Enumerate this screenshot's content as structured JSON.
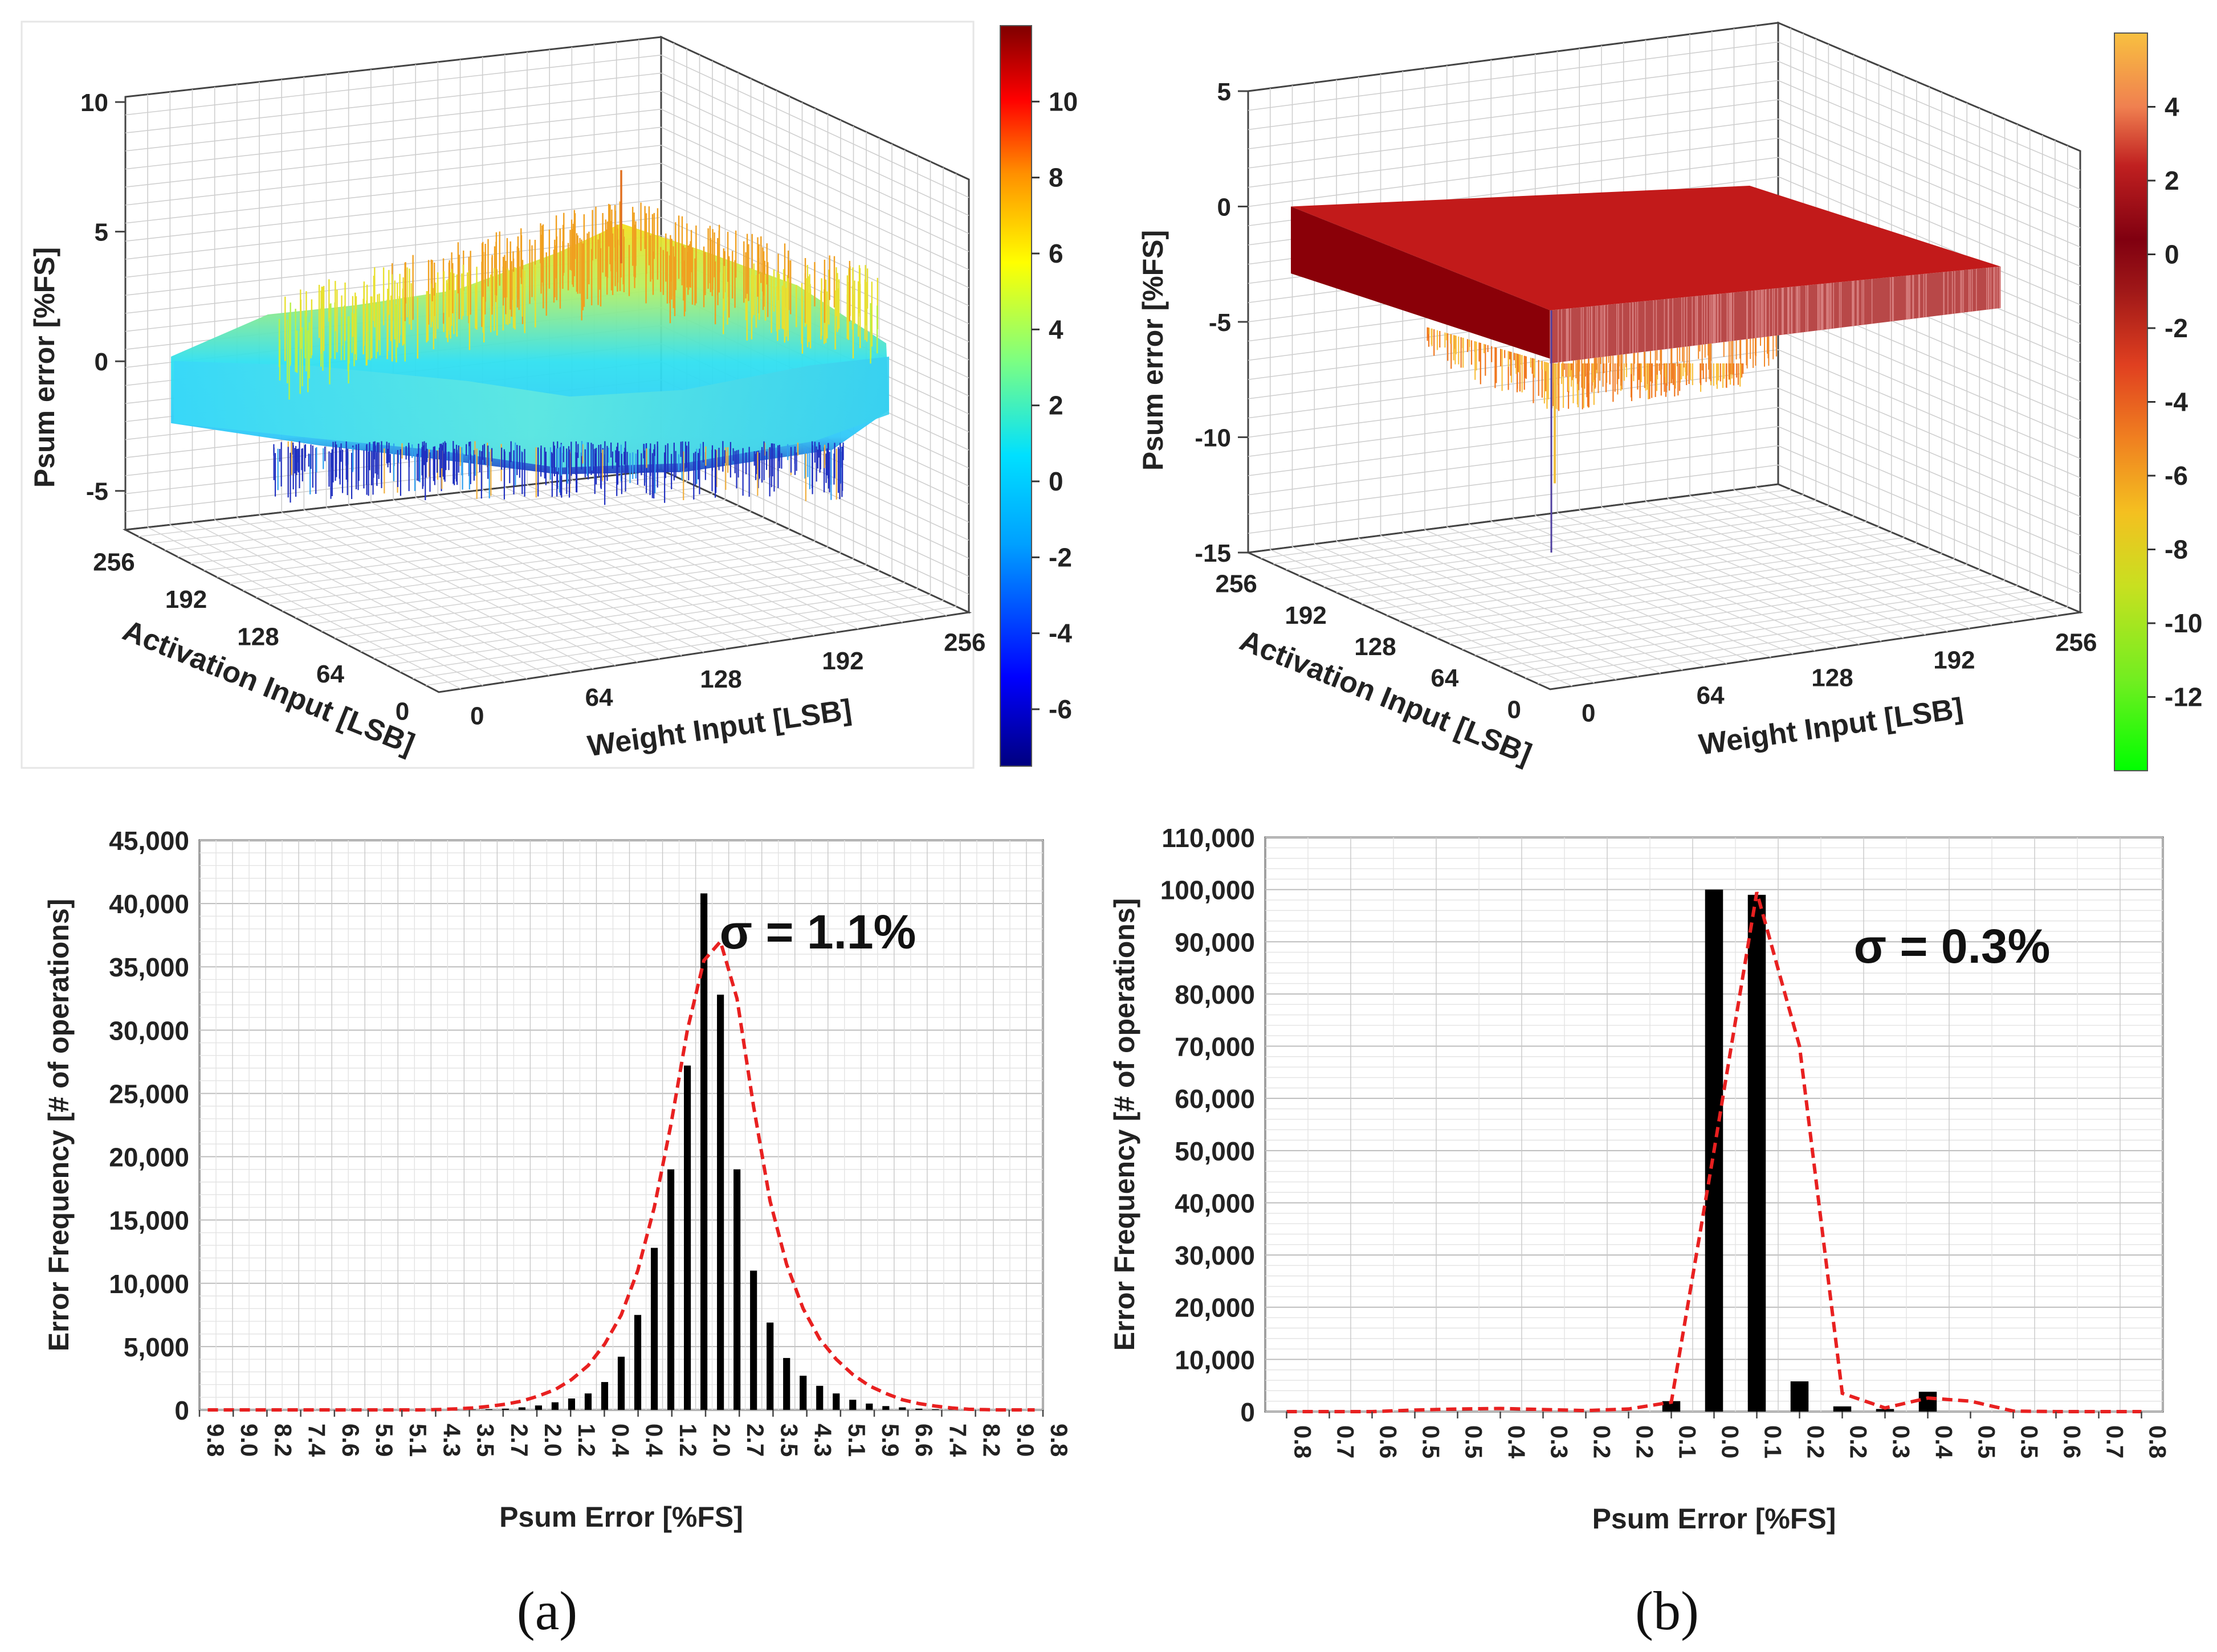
{
  "chart_data": [
    {
      "id": "surface_a",
      "type": "surface3d",
      "zlabel": "Psum error [%FS]",
      "xlabel": "Activation Input [LSB]",
      "ylabel": "Weight Input [LSB]",
      "z_ticks": [
        "10",
        "5",
        "0",
        "-5"
      ],
      "x_ticks": [
        "256",
        "192",
        "128",
        "64",
        "0"
      ],
      "y_ticks": [
        "0",
        "64",
        "128",
        "192",
        "256"
      ],
      "zlim": [
        -6,
        10
      ],
      "colorbar_ticks": [
        "10",
        "8",
        "6",
        "4",
        "2",
        "0",
        "-2",
        "-4",
        "-6"
      ],
      "colorbar_range": [
        -7.5,
        12
      ],
      "colormap": [
        "#00007f",
        "#0000ff",
        "#00a0ff",
        "#00e0ff",
        "#7fff7f",
        "#ffff00",
        "#ff9000",
        "#ff0000",
        "#7f0000"
      ]
    },
    {
      "id": "surface_b",
      "type": "surface3d",
      "zlabel": "Psum error [%FS]",
      "xlabel": "Activation Input [LSB]",
      "ylabel": "Weight Input [LSB]",
      "z_ticks": [
        "5",
        "0",
        "-5",
        "-10",
        "-15"
      ],
      "x_ticks": [
        "256",
        "192",
        "128",
        "64",
        "0"
      ],
      "y_ticks": [
        "0",
        "64",
        "128",
        "192",
        "256"
      ],
      "zlim": [
        -15,
        5
      ],
      "colorbar_ticks": [
        "4",
        "2",
        "0",
        "-2",
        "-4",
        "-6",
        "-8",
        "-10",
        "-12"
      ],
      "colorbar_range": [
        -14,
        6
      ],
      "colormap": [
        "#00ff00",
        "#70ee20",
        "#c8e020",
        "#f4c020",
        "#f08020",
        "#e04020",
        "#a01818",
        "#800010",
        "#c02020",
        "#f08050",
        "#f8c040"
      ]
    },
    {
      "id": "hist_a",
      "type": "bar",
      "title": "",
      "xlabel": "Psum Error [%FS]",
      "ylabel": "Error Frequency [# of operations]",
      "ylim": [
        0,
        45000
      ],
      "y_ticks": [
        "45,000",
        "40,000",
        "35,000",
        "30,000",
        "25,000",
        "20,000",
        "15,000",
        "10,000",
        "5,000",
        "0"
      ],
      "categories": [
        "9.8",
        "9.0",
        "8.2",
        "7.4",
        "6.6",
        "5.9",
        "5.1",
        "4.3",
        "3.5",
        "2.7",
        "2.0",
        "1.2",
        "0.4",
        "0.4",
        "1.2",
        "2.0",
        "2.7",
        "3.5",
        "4.3",
        "5.1",
        "5.9",
        "6.6",
        "7.4",
        "8.2",
        "9.0",
        "9.8"
      ],
      "n_bins": 51,
      "bar_values": [
        0,
        0,
        0,
        0,
        0,
        0,
        0,
        0,
        0,
        0,
        0,
        0,
        0,
        0,
        0,
        10,
        30,
        60,
        100,
        200,
        350,
        600,
        900,
        1300,
        2200,
        4200,
        7500,
        12800,
        19000,
        27200,
        40800,
        32800,
        19000,
        11000,
        6900,
        4100,
        2700,
        1900,
        1300,
        800,
        500,
        300,
        200,
        100,
        50,
        30,
        10,
        0,
        0,
        0,
        0
      ],
      "fit_values": [
        0,
        0,
        0,
        0,
        0,
        0,
        0,
        0,
        0,
        0,
        0,
        0,
        0,
        0,
        30,
        80,
        150,
        280,
        450,
        700,
        1100,
        1600,
        2400,
        3500,
        5200,
        7500,
        11000,
        16000,
        22500,
        30000,
        35500,
        37000,
        32500,
        24000,
        16500,
        11500,
        8000,
        5600,
        4000,
        2800,
        1900,
        1300,
        800,
        500,
        300,
        150,
        50,
        20,
        0,
        0,
        0
      ],
      "sigma_label": "σ = 1.1%",
      "colors": {
        "bar": "#000000",
        "fit": "#e82020"
      }
    },
    {
      "id": "hist_b",
      "type": "bar",
      "title": "",
      "xlabel": "Psum Error [%FS]",
      "ylabel": "Error Frequency [# of operations]",
      "ylim": [
        0,
        110000
      ],
      "y_ticks": [
        "110,000",
        "100,000",
        "90,000",
        "80,000",
        "70,000",
        "60,000",
        "50,000",
        "40,000",
        "30,000",
        "20,000",
        "10,000",
        "0"
      ],
      "categories": [
        "0.8",
        "0.7",
        "0.6",
        "0.5",
        "0.5",
        "0.4",
        "0.3",
        "0.2",
        "0.2",
        "0.1",
        "0.0",
        "0.1",
        "0.2",
        "0.2",
        "0.3",
        "0.4",
        "0.5",
        "0.5",
        "0.6",
        "0.7",
        "0.8"
      ],
      "bar_values": [
        0,
        0,
        0,
        0,
        0,
        0,
        0,
        0,
        0,
        2000,
        100000,
        99000,
        5800,
        1000,
        500,
        3800,
        0,
        0,
        0,
        0,
        0
      ],
      "fit_values": [
        0,
        0,
        0,
        300,
        500,
        600,
        400,
        200,
        500,
        1800,
        50000,
        99500,
        70000,
        3500,
        700,
        2600,
        2000,
        100,
        0,
        0,
        0
      ],
      "sigma_label": "σ = 0.3%",
      "colors": {
        "bar": "#000000",
        "fit": "#e82020"
      }
    }
  ],
  "captions": {
    "a": "(a)",
    "b": "(b)"
  }
}
